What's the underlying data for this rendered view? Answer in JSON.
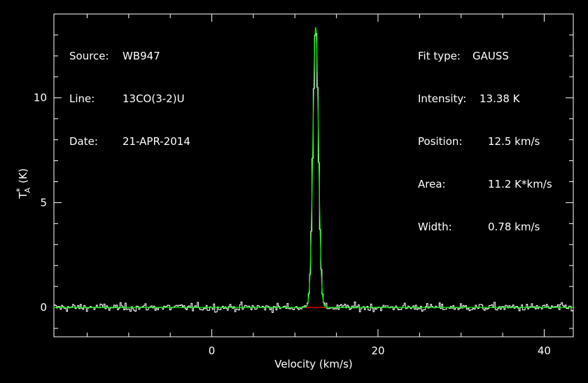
{
  "colors": {
    "background": "#000000",
    "spectrum": "#ffffff",
    "fit": "#00ff00",
    "baseline": "#ff0000"
  },
  "info_left": [
    {
      "key": "Source:",
      "value": "WB947"
    },
    {
      "key": "Line:",
      "value": "13CO(3-2)U"
    },
    {
      "key": "Date:",
      "value": "21-APR-2014"
    }
  ],
  "info_right": [
    {
      "key": "Fit type:",
      "value": "GAUSS"
    },
    {
      "key": "Intensity:",
      "value": "13.38 K"
    },
    {
      "key": "Position:",
      "value": "12.5 km/s"
    },
    {
      "key": "Area:",
      "value": "11.2 K*km/s"
    },
    {
      "key": "Width:",
      "value": "0.78 km/s"
    }
  ],
  "chart_data": {
    "type": "line",
    "xlabel": "Velocity (km/s)",
    "ylabel": "T",
    "ylabel_sub": "A",
    "ylabel_sup": "*",
    "ylabel_unit": "(K)",
    "xlim": [
      -19,
      43.5
    ],
    "ylim": [
      -1.4,
      14.0
    ],
    "xticks": [
      0,
      20,
      40
    ],
    "yticks": [
      0,
      5,
      10
    ],
    "xtick_labels": [
      "0",
      "20",
      "40"
    ],
    "ytick_labels": [
      "0",
      "5",
      "10"
    ],
    "gaussian_fit": {
      "amplitude": 13.38,
      "center": 12.5,
      "fwhm": 0.78
    },
    "channel_width": 0.15,
    "noise_rms": 0.15,
    "baseline_range": [
      11.2,
      13.8
    ]
  }
}
